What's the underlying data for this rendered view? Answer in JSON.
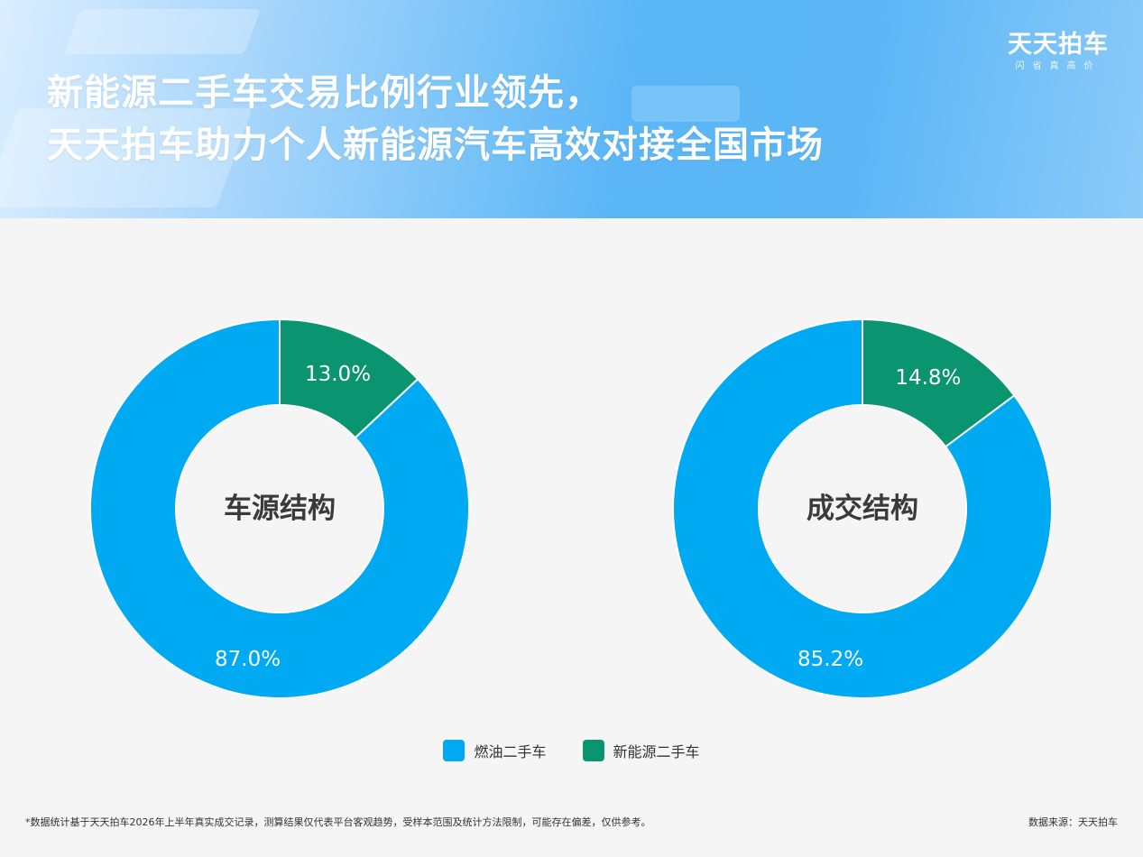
{
  "header": {
    "title_line1": "新能源二手车交易比例行业领先，",
    "title_line2": "天天拍车助力个人新能源汽车高效对接全国市场",
    "brand_name": "天天拍车",
    "brand_slogan": "闪省真高价"
  },
  "colors": {
    "fuel": "#00aaf3",
    "ev": "#0a9470",
    "header_blue": "#5ab6f6",
    "center_fill": "#f5f5f5"
  },
  "chart_data": [
    {
      "type": "pie",
      "variant": "donut",
      "center_label": "车源结构",
      "categories": [
        "燃油二手车",
        "新能源二手车"
      ],
      "values": [
        87.0,
        13.0
      ],
      "labels": [
        "87.0%",
        "13.0%"
      ],
      "unit": "%"
    },
    {
      "type": "pie",
      "variant": "donut",
      "center_label": "成交结构",
      "categories": [
        "燃油二手车",
        "新能源二手车"
      ],
      "values": [
        85.2,
        14.8
      ],
      "labels": [
        "85.2%",
        "14.8%"
      ],
      "unit": "%"
    }
  ],
  "legend": {
    "placement": "bottom-center",
    "items": [
      {
        "label": "燃油二手车",
        "color": "#00aaf3"
      },
      {
        "label": "新能源二手车",
        "color": "#0a9470"
      }
    ]
  },
  "footer": {
    "note": "*数据统计基于天天拍车2026年上半年真实成交记录，测算结果仅代表平台客观趋势，受样本范围及统计方法限制，可能存在偏差，仅供参考。",
    "source": "数据来源：天天拍车"
  }
}
